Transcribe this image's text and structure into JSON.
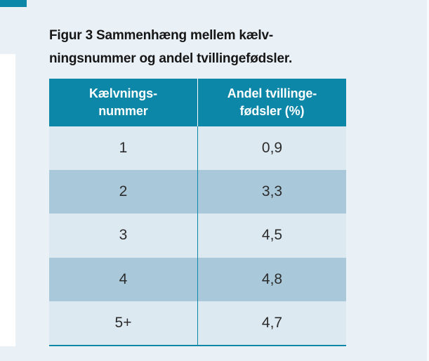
{
  "colors": {
    "accent_teal": "#0c87a8",
    "page_background": "#e9f0f6",
    "row_light": "#dde9f1",
    "row_dark": "#a9c9da",
    "header_text": "#ffffff",
    "body_text": "#2c2c2c"
  },
  "figure": {
    "title_lines": [
      "Figur 3 Sammenhæng mellem kælv-",
      "ningsnummer og andel tvillingefødsler."
    ],
    "table": {
      "headers": [
        {
          "lines": [
            "Kælvnings-",
            "nummer"
          ]
        },
        {
          "lines": [
            "Andel tvillinge-",
            "fødsler (%)"
          ]
        }
      ],
      "rows": [
        [
          "1",
          "0,9"
        ],
        [
          "2",
          "3,3"
        ],
        [
          "3",
          "4,5"
        ],
        [
          "4",
          "4,8"
        ],
        [
          "5+",
          "4,7"
        ]
      ]
    }
  },
  "chart_data": {
    "type": "table",
    "title": "Figur 3 Sammenhæng mellem kælvningsnummer og andel tvillingefødsler.",
    "columns": [
      "Kælvningsnummer",
      "Andel tvillingefødsler (%)"
    ],
    "categories": [
      "1",
      "2",
      "3",
      "4",
      "5+"
    ],
    "values": [
      0.9,
      3.3,
      4.5,
      4.8,
      4.7
    ]
  }
}
